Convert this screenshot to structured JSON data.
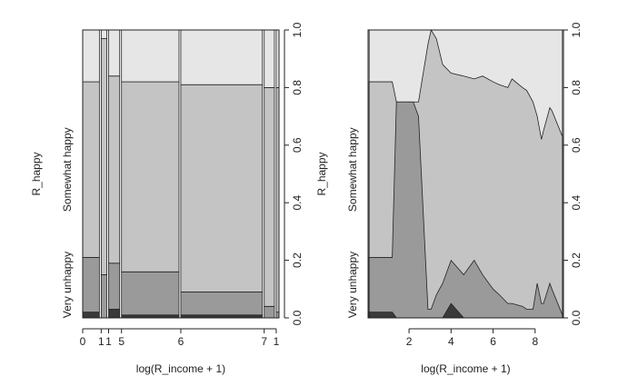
{
  "chart_data": [
    {
      "type": "spineplot",
      "xlabel": "log(R_income + 1)",
      "ylabel": "R_happy",
      "xticklabels": [
        "0",
        "1",
        "1",
        "5",
        "6",
        "7",
        "1"
      ],
      "widths": [
        0.09,
        0.03,
        0.06,
        0.31,
        0.44,
        0.055,
        0.015
      ],
      "series": [
        {
          "name": null,
          "color": "#3a3a3a",
          "values": [
            0.02,
            0,
            0.03,
            0.01,
            0.01,
            0,
            0
          ]
        },
        {
          "name": "Very unhappy",
          "color": "#9a9a9a",
          "values": [
            0.19,
            0.15,
            0.16,
            0.15,
            0.08,
            0.04,
            0.02
          ]
        },
        {
          "name": "Somewhat happy",
          "color": "#c4c4c4",
          "values": [
            0.61,
            0.82,
            0.65,
            0.66,
            0.72,
            0.76,
            0.78
          ]
        },
        {
          "name": null,
          "color": "#e6e6e6",
          "values": [
            0.18,
            0.03,
            0.16,
            0.18,
            0.19,
            0.2,
            0.2
          ]
        }
      ],
      "ylim": [
        0,
        1
      ],
      "yticks": [
        {
          "value": 0,
          "label": "0.0"
        },
        {
          "value": 0.2,
          "label": "0.2"
        },
        {
          "value": 0.4,
          "label": "0.4"
        },
        {
          "value": 0.6,
          "label": "0.6"
        },
        {
          "value": 0.8,
          "label": "0.8"
        },
        {
          "value": 1,
          "label": "1.0"
        }
      ]
    },
    {
      "type": "cdplot",
      "xlabel": "log(R_income + 1)",
      "ylabel": "R_happy",
      "x": [
        0.1,
        1.2,
        1.4,
        2.2,
        2.45,
        2.9,
        3.05,
        3.3,
        3.6,
        4,
        4.6,
        5.1,
        5.5,
        6,
        6.3,
        6.7,
        6.9,
        7.4,
        7.6,
        7.9,
        8.1,
        8.3,
        8.4,
        8.7,
        8.8,
        9.3
      ],
      "series": [
        {
          "name": null,
          "color": "#3a3a3a",
          "values": [
            0.02,
            0.02,
            0,
            0,
            0,
            0,
            0,
            0,
            0,
            0.05,
            0,
            0,
            0,
            0,
            0,
            0,
            0,
            0,
            0,
            0,
            0,
            0,
            0,
            0,
            0,
            0
          ]
        },
        {
          "name": "Very unhappy",
          "color": "#9a9a9a",
          "values": [
            0.19,
            0.19,
            0.75,
            0.75,
            0.7,
            0.03,
            0.03,
            0.08,
            0.12,
            0.15,
            0.15,
            0.2,
            0.15,
            0.1,
            0.08,
            0.05,
            0.05,
            0.04,
            0.03,
            0.03,
            0.12,
            0.05,
            0.05,
            0.12,
            0.1,
            0.01
          ]
        },
        {
          "name": "Somewhat happy",
          "color": "#c4c4c4",
          "values": [
            0.61,
            0.61,
            0,
            0,
            0.05,
            0.92,
            0.97,
            0.89,
            0.76,
            0.65,
            0.69,
            0.63,
            0.69,
            0.72,
            0.73,
            0.75,
            0.78,
            0.76,
            0.76,
            0.72,
            0.58,
            0.57,
            0.6,
            0.61,
            0.62,
            0.62
          ]
        },
        {
          "name": null,
          "color": "#e6e6e6",
          "values": [
            0.18,
            0.18,
            0.25,
            0.25,
            0.25,
            0.05,
            0,
            0.03,
            0.12,
            0.15,
            0.16,
            0.17,
            0.16,
            0.18,
            0.19,
            0.2,
            0.17,
            0.2,
            0.21,
            0.25,
            0.3,
            0.38,
            0.35,
            0.27,
            0.28,
            0.37
          ]
        }
      ],
      "xlim": [
        0.05,
        9.35
      ],
      "xticks": [
        2,
        4,
        6,
        8
      ],
      "ylim": [
        0,
        1
      ],
      "yticks": [
        {
          "value": 0,
          "label": "0.0"
        },
        {
          "value": 0.2,
          "label": "0.2"
        },
        {
          "value": 0.4,
          "label": "0.4"
        },
        {
          "value": 0.6,
          "label": "0.6"
        },
        {
          "value": 0.8,
          "label": "0.8"
        },
        {
          "value": 1,
          "label": "1.0"
        }
      ]
    }
  ]
}
